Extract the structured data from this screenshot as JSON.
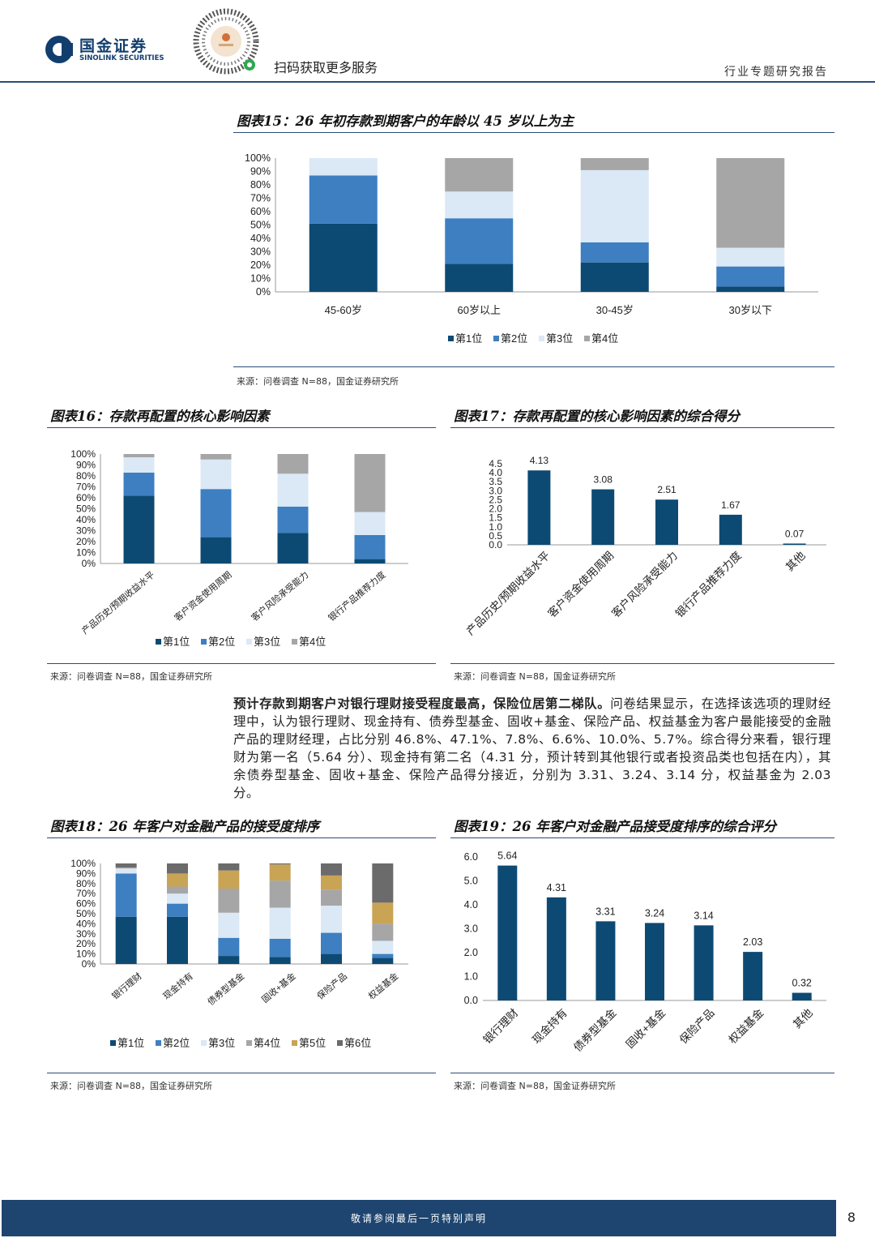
{
  "header": {
    "logo_cn": "国金证券",
    "logo_en": "SINOLINK SECURITIES",
    "qr_text": "扫码获取更多服务",
    "report_type": "行业专题研究报告",
    "brand_color": "#123e6e"
  },
  "figures": {
    "fig15": {
      "title": "图表15：26 年初存款到期客户的年龄以 45 岁以上为主",
      "source": "来源：问卷调查 N=88，国金证券研究所"
    },
    "fig16": {
      "title": "图表16：存款再配置的核心影响因素",
      "source": "来源：问卷调查 N=88，国金证券研究所"
    },
    "fig17": {
      "title": "图表17：存款再配置的核心影响因素的综合得分",
      "source": "来源：问卷调查 N=88，国金证券研究所"
    },
    "fig18": {
      "title": "图表18：26 年客户对金融产品的接受度排序",
      "source": "来源：问卷调查 N=88，国金证券研究所"
    },
    "fig19": {
      "title": "图表19：26 年客户对金融产品接受度排序的综合评分",
      "source": "来源：问卷调查 N=88，国金证券研究所"
    }
  },
  "paragraph": {
    "bold": "预计存款到期客户对银行理财接受程度最高，保险位居第二梯队。",
    "text": "问卷结果显示，在选择该选项的理财经理中，认为银行理财、现金持有、债券型基金、固收+基金、保险产品、权益基金为客户最能接受的金融产品的理财经理，占比分别 46.8%、47.1%、7.8%、6.6%、10.0%、5.7%。综合得分来看，银行理财为第一名（5.64 分）、现金持有第二名（4.31 分，预计转到其他银行或者投资品类也包括在内），其余债券型基金、固收+基金、保险产品得分接近，分别为 3.31、3.24、3.14 分，权益基金为 2.03 分。"
  },
  "footer": {
    "text": "敬请参阅最后一页特别声明",
    "page": "8"
  },
  "colors": {
    "c1": "#0d4a73",
    "c2": "#3d7fc1",
    "c3": "#dbe8f5",
    "c4": "#a6a6a6",
    "c5": "#c9a455",
    "c6": "#6b6b6b"
  },
  "chart_data": [
    {
      "id": "fig15",
      "type": "bar",
      "stacked": true,
      "title": "26 年初存款到期客户的年龄以 45 岁以上为主",
      "categories": [
        "45-60岁",
        "60岁以上",
        "30-45岁",
        "30岁以下"
      ],
      "yticks": [
        "0%",
        "10%",
        "20%",
        "30%",
        "40%",
        "50%",
        "60%",
        "70%",
        "80%",
        "90%",
        "100%"
      ],
      "ylim": [
        0,
        100
      ],
      "series": [
        {
          "name": "第1位",
          "values": [
            51,
            21,
            22,
            4
          ]
        },
        {
          "name": "第2位",
          "values": [
            36,
            34,
            15,
            15
          ]
        },
        {
          "name": "第3位",
          "values": [
            13,
            20,
            54,
            14
          ]
        },
        {
          "name": "第4位",
          "values": [
            0,
            25,
            9,
            67
          ]
        }
      ]
    },
    {
      "id": "fig16",
      "type": "bar",
      "stacked": true,
      "title": "存款再配置的核心影响因素",
      "categories": [
        "产品历史/预期收益水平",
        "客户资金使用周期",
        "客户风险承受能力",
        "银行产品推荐力度"
      ],
      "yticks": [
        "0%",
        "10%",
        "20%",
        "30%",
        "40%",
        "50%",
        "60%",
        "70%",
        "80%",
        "90%",
        "100%"
      ],
      "ylim": [
        0,
        100
      ],
      "series": [
        {
          "name": "第1位",
          "values": [
            62,
            24,
            28,
            4
          ]
        },
        {
          "name": "第2位",
          "values": [
            21,
            44,
            24,
            22
          ]
        },
        {
          "name": "第3位",
          "values": [
            14,
            27,
            30,
            21
          ]
        },
        {
          "name": "第4位",
          "values": [
            3,
            5,
            18,
            53
          ]
        }
      ]
    },
    {
      "id": "fig17",
      "type": "bar",
      "title": "存款再配置的核心影响因素的综合得分",
      "categories": [
        "产品历史/预期收益水平",
        "客户资金使用周期",
        "客户风险承受能力",
        "银行产品推荐力度",
        "其他"
      ],
      "values": [
        4.13,
        3.08,
        2.51,
        1.67,
        0.07
      ],
      "labels": [
        "4.13",
        "3.08",
        "2.51",
        "1.67",
        "0.07"
      ],
      "yticks": [
        "0.0",
        "0.5",
        "1.0",
        "1.5",
        "2.0",
        "2.5",
        "3.0",
        "3.5",
        "4.0",
        "4.5"
      ],
      "ylim": [
        0,
        4.5
      ]
    },
    {
      "id": "fig18",
      "type": "bar",
      "stacked": true,
      "title": "26 年客户对金融产品的接受度排序",
      "categories": [
        "银行理财",
        "现金持有",
        "债券型基金",
        "固收+基金",
        "保险产品",
        "权益基金"
      ],
      "yticks": [
        "0%",
        "10%",
        "20%",
        "30%",
        "40%",
        "50%",
        "60%",
        "70%",
        "80%",
        "90%",
        "100%"
      ],
      "ylim": [
        0,
        100
      ],
      "series": [
        {
          "name": "第1位",
          "values": [
            47,
            47,
            8,
            7,
            10,
            6
          ]
        },
        {
          "name": "第2位",
          "values": [
            43,
            13,
            18,
            18,
            21,
            4
          ]
        },
        {
          "name": "第3位",
          "values": [
            5,
            10,
            25,
            31,
            27,
            13
          ]
        },
        {
          "name": "第4位",
          "values": [
            1,
            7,
            24,
            27,
            16,
            17
          ]
        },
        {
          "name": "第5位",
          "values": [
            0,
            13,
            18,
            16,
            14,
            21
          ]
        },
        {
          "name": "第6位",
          "values": [
            4,
            10,
            7,
            1,
            12,
            39
          ]
        }
      ]
    },
    {
      "id": "fig19",
      "type": "bar",
      "title": "26 年客户对金融产品接受度排序的综合评分",
      "categories": [
        "银行理财",
        "现金持有",
        "债券型基金",
        "固收+基金",
        "保险产品",
        "权益基金",
        "其他"
      ],
      "values": [
        5.64,
        4.31,
        3.31,
        3.24,
        3.14,
        2.03,
        0.32
      ],
      "labels": [
        "5.64",
        "4.31",
        "3.31",
        "3.24",
        "3.14",
        "2.03",
        "0.32"
      ],
      "yticks": [
        "0.0",
        "1.0",
        "2.0",
        "3.0",
        "4.0",
        "5.0",
        "6.0"
      ],
      "ylim": [
        0,
        6
      ]
    }
  ]
}
